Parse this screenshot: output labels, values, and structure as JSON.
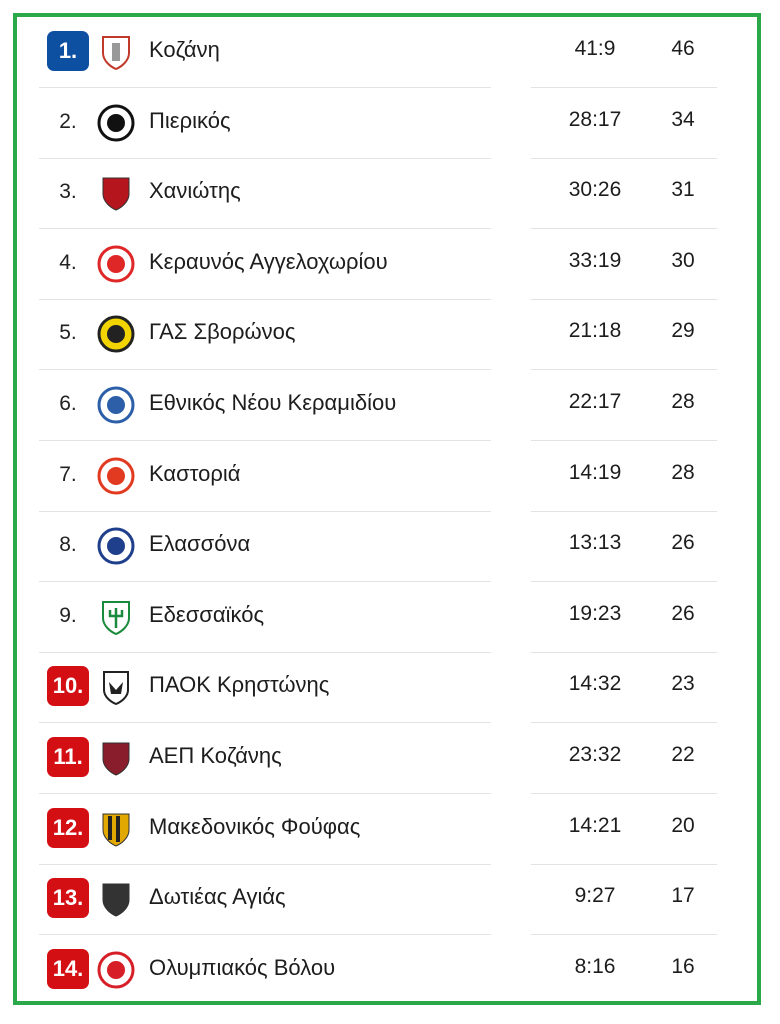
{
  "colors": {
    "border": "#2aa84a",
    "promotion": "#0d4fa0",
    "relegation": "#d40f14"
  },
  "standings": [
    {
      "rank": "1.",
      "team": "Κοζάνη",
      "goals": "41:9",
      "points": "46",
      "zone": "promotion",
      "logo_color": "#c0392b",
      "logo_icon": "tower-crest-icon"
    },
    {
      "rank": "2.",
      "team": "Πιερικός",
      "goals": "28:17",
      "points": "34",
      "zone": "none",
      "logo_color": "#111111",
      "logo_icon": "letter-p-crest-icon"
    },
    {
      "rank": "3.",
      "team": "Χανιώτης",
      "goals": "30:26",
      "points": "31",
      "zone": "none",
      "logo_color": "#b5161d",
      "logo_icon": "shield-crest-icon"
    },
    {
      "rank": "4.",
      "team": "Κεραυνός Αγγελοχωρίου",
      "goals": "33:19",
      "points": "30",
      "zone": "none",
      "logo_color": "#e02727",
      "logo_icon": "fc-crest-icon"
    },
    {
      "rank": "5.",
      "team": "ΓΑΣ Σβορώνος",
      "goals": "21:18",
      "points": "29",
      "zone": "none",
      "logo_color": "#f2d400",
      "logo_icon": "portrait-crest-icon"
    },
    {
      "rank": "6.",
      "team": "Εθνικός Νέου Κεραμιδίου",
      "goals": "22:17",
      "points": "28",
      "zone": "none",
      "logo_color": "#2c5fa8",
      "logo_icon": "circle-crest-icon"
    },
    {
      "rank": "7.",
      "team": "Καστοριά",
      "goals": "14:19",
      "points": "28",
      "zone": "none",
      "logo_color": "#e23a20",
      "logo_icon": "ring-crest-icon"
    },
    {
      "rank": "8.",
      "team": "Ελασσόνα",
      "goals": "13:13",
      "points": "26",
      "zone": "none",
      "logo_color": "#1f3f8c",
      "logo_icon": "round-crest-icon"
    },
    {
      "rank": "9.",
      "team": "Εδεσσαϊκός",
      "goals": "19:23",
      "points": "26",
      "zone": "none",
      "logo_color": "#1a8a3c",
      "logo_icon": "trident-crest-icon"
    },
    {
      "rank": "10.",
      "team": "ΠΑΟΚ Κρηστώνης",
      "goals": "14:32",
      "points": "23",
      "zone": "relegation",
      "logo_color": "#222222",
      "logo_icon": "eagle-crest-icon"
    },
    {
      "rank": "11.",
      "team": "ΑΕΠ Κοζάνης",
      "goals": "23:32",
      "points": "22",
      "zone": "relegation",
      "logo_color": "#8a1d2b",
      "logo_icon": "shield-crest-icon"
    },
    {
      "rank": "12.",
      "team": "Μακεδονικός Φούφας",
      "goals": "14:21",
      "points": "20",
      "zone": "relegation",
      "logo_color": "#e0a800",
      "logo_icon": "striped-crest-icon"
    },
    {
      "rank": "13.",
      "team": "Δωτιέας Αγιάς",
      "goals": "9:27",
      "points": "17",
      "zone": "relegation",
      "logo_color": "#333333",
      "logo_icon": "shield-crest-icon"
    },
    {
      "rank": "14.",
      "team": "Ολυμπιακός Βόλου",
      "goals": "8:16",
      "points": "16",
      "zone": "relegation",
      "logo_color": "#d61f26",
      "logo_icon": "profile-crest-icon"
    }
  ]
}
